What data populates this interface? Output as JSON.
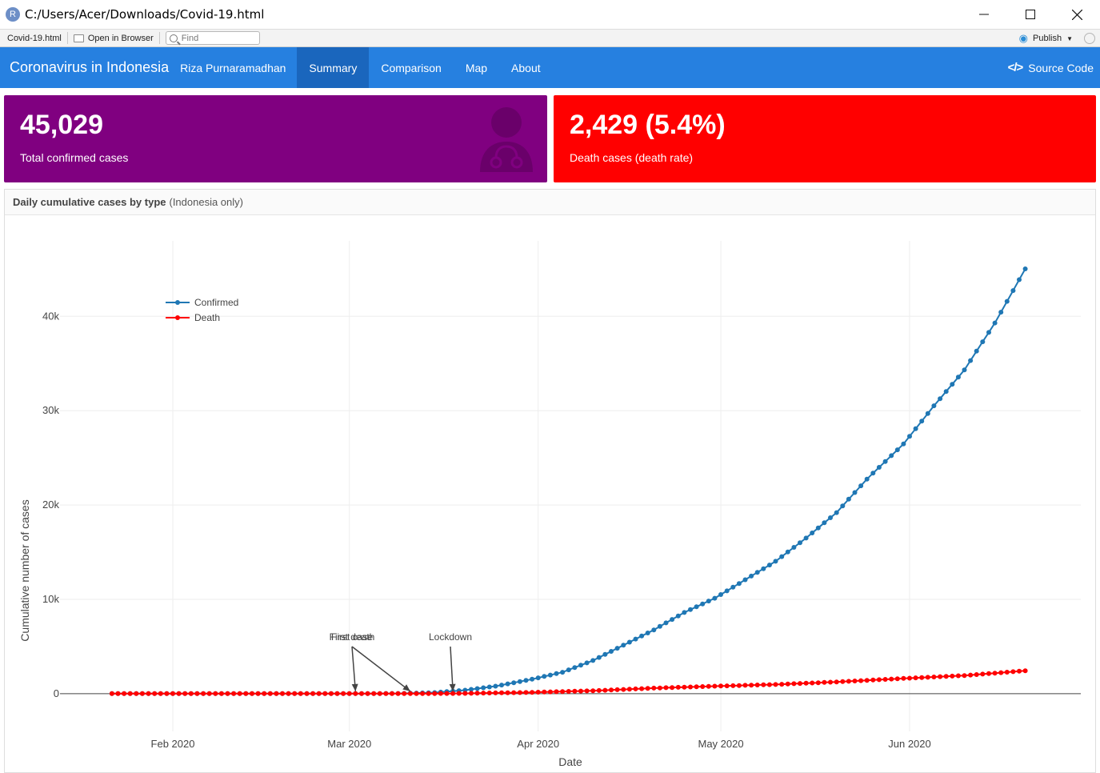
{
  "window": {
    "title": "C:/Users/Acer/Downloads/Covid-19.html",
    "app_icon_letter": "R"
  },
  "viewer_toolbar": {
    "file_name": "Covid-19.html",
    "open_in_browser": "Open in Browser",
    "find_placeholder": "Find",
    "publish": "Publish"
  },
  "navbar": {
    "title": "Coronavirus in Indonesia",
    "author": "Riza Purnaramadhan",
    "tabs": [
      {
        "label": "Summary",
        "active": true
      },
      {
        "label": "Comparison",
        "active": false
      },
      {
        "label": "Map",
        "active": false
      },
      {
        "label": "About",
        "active": false
      }
    ],
    "source_code": "Source Code"
  },
  "value_boxes": {
    "confirmed": {
      "value": "45,029",
      "caption": "Total confirmed cases",
      "color": "#800080",
      "icon": "user-doctor-icon"
    },
    "death": {
      "value": "2,429 (5.4%)",
      "caption": "Death cases (death rate)",
      "color": "#ff0000"
    }
  },
  "chart_card": {
    "title": "Daily cumulative cases by type",
    "subtitle": "(Indonesia only)"
  },
  "chart_data": {
    "type": "line",
    "xlabel": "Date",
    "ylabel": "Cumulative number of cases",
    "x_start": "2020-01-22",
    "x_end": "2020-06-20",
    "ylim": [
      -4000,
      48000
    ],
    "x_ticks": [
      "Feb 2020",
      "Mar 2020",
      "Apr 2020",
      "May 2020",
      "Jun 2020"
    ],
    "y_ticks": [
      "0",
      "10k",
      "20k",
      "30k",
      "40k"
    ],
    "y_tick_values": [
      0,
      10000,
      20000,
      30000,
      40000
    ],
    "grid": true,
    "legend_position": "top-left",
    "series": [
      {
        "name": "Confirmed",
        "color": "#1f77b4",
        "points": [
          [
            "2020-01-22",
            0
          ],
          [
            "2020-03-02",
            2
          ],
          [
            "2020-03-10",
            27
          ],
          [
            "2020-03-15",
            117
          ],
          [
            "2020-03-20",
            369
          ],
          [
            "2020-03-25",
            790
          ],
          [
            "2020-03-31",
            1528
          ],
          [
            "2020-04-05",
            2273
          ],
          [
            "2020-04-10",
            3512
          ],
          [
            "2020-04-15",
            5136
          ],
          [
            "2020-04-20",
            6760
          ],
          [
            "2020-04-25",
            8607
          ],
          [
            "2020-04-30",
            10118
          ],
          [
            "2020-05-05",
            12071
          ],
          [
            "2020-05-10",
            14032
          ],
          [
            "2020-05-15",
            16496
          ],
          [
            "2020-05-20",
            19189
          ],
          [
            "2020-05-25",
            22750
          ],
          [
            "2020-05-31",
            26473
          ],
          [
            "2020-06-05",
            30514
          ],
          [
            "2020-06-10",
            34316
          ],
          [
            "2020-06-15",
            39294
          ],
          [
            "2020-06-20",
            45029
          ]
        ]
      },
      {
        "name": "Death",
        "color": "#ff0000",
        "points": [
          [
            "2020-01-22",
            0
          ],
          [
            "2020-03-11",
            1
          ],
          [
            "2020-03-20",
            32
          ],
          [
            "2020-03-31",
            136
          ],
          [
            "2020-04-10",
            306
          ],
          [
            "2020-04-20",
            590
          ],
          [
            "2020-04-30",
            792
          ],
          [
            "2020-05-10",
            973
          ],
          [
            "2020-05-20",
            1242
          ],
          [
            "2020-05-31",
            1613
          ],
          [
            "2020-06-10",
            1923
          ],
          [
            "2020-06-20",
            2429
          ]
        ]
      }
    ],
    "annotations": [
      {
        "text": "First case",
        "date": "2020-03-02"
      },
      {
        "text": "First death",
        "date": "2020-03-11"
      },
      {
        "text": "Lockdown",
        "date": "2020-03-18"
      }
    ]
  }
}
